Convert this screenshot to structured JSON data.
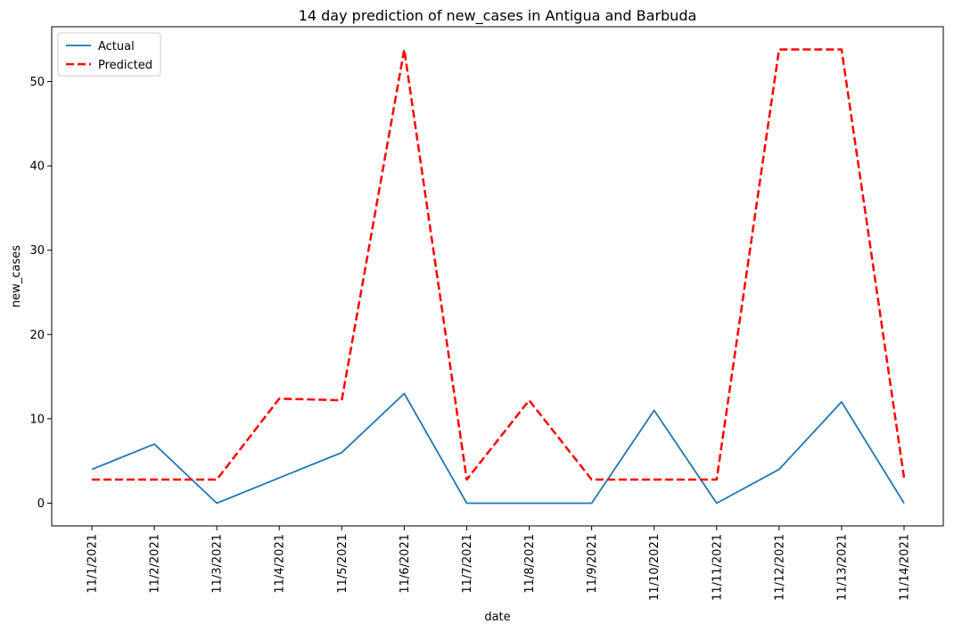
{
  "chart_data": {
    "type": "line",
    "title": "14 day prediction of new_cases in Antigua and Barbuda",
    "xlabel": "date",
    "ylabel": "new_cases",
    "categories": [
      "11/1/2021",
      "11/2/2021",
      "11/3/2021",
      "11/4/2021",
      "11/5/2021",
      "11/6/2021",
      "11/7/2021",
      "11/8/2021",
      "11/9/2021",
      "11/10/2021",
      "11/11/2021",
      "11/12/2021",
      "11/13/2021",
      "11/14/2021"
    ],
    "ylim": [
      -2.7,
      56.5
    ],
    "yticks": [
      0,
      10,
      20,
      30,
      40,
      50
    ],
    "grid": false,
    "legend_position": "top-left",
    "series": [
      {
        "name": "Actual",
        "color": "#1f77b4",
        "style": "solid",
        "values": [
          4,
          7,
          0,
          3,
          6,
          13,
          0,
          0,
          0,
          11,
          0,
          4,
          12,
          0
        ]
      },
      {
        "name": "Predicted",
        "color": "#ff0000",
        "style": "dashed",
        "values": [
          2.8,
          2.8,
          2.8,
          12.4,
          12.2,
          53.8,
          2.8,
          12.2,
          2.8,
          2.8,
          2.8,
          53.8,
          53.8,
          3.0
        ]
      }
    ]
  }
}
